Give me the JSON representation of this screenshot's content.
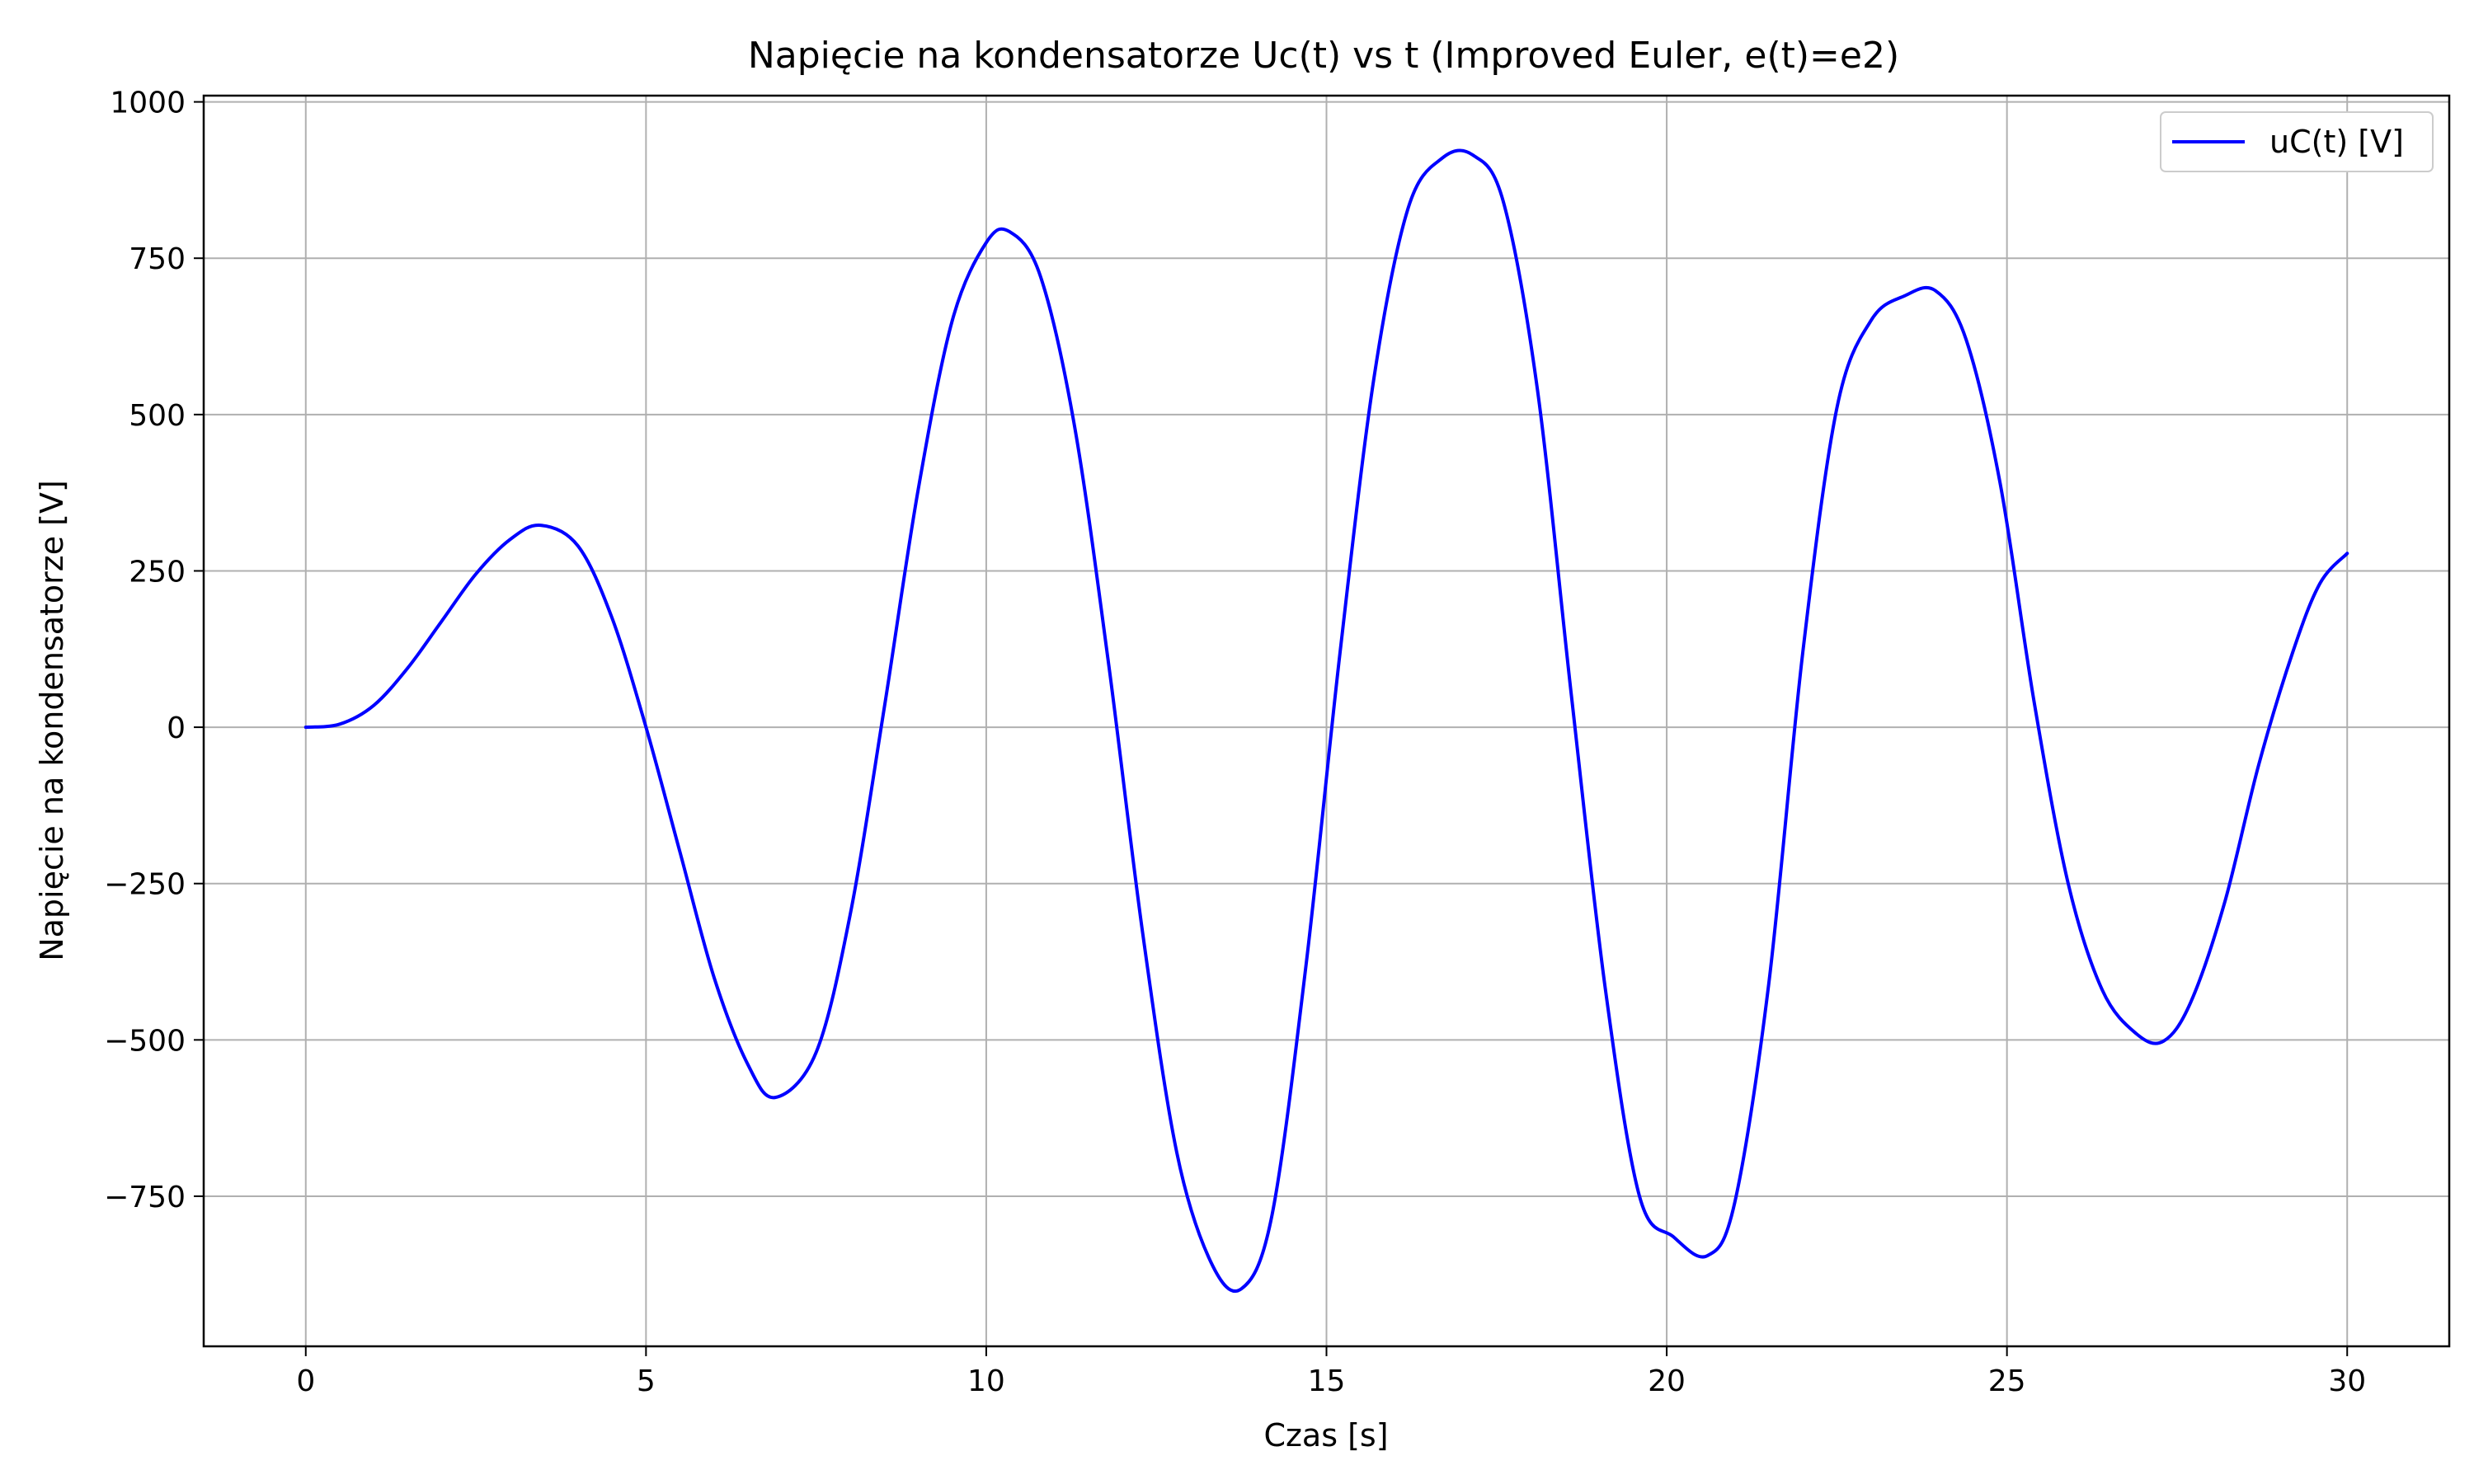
{
  "chart_data": {
    "type": "line",
    "title": "Napięcie na kondensatorze Uc(t) vs t (Improved Euler, e(t)=e2)",
    "xlabel": "Czas [s]",
    "ylabel": "Napięcie na kondensatorze [V]",
    "xlim": [
      -1.5,
      31.5
    ],
    "ylim": [
      -990,
      1010
    ],
    "xticks": [
      0,
      5,
      10,
      15,
      20,
      25,
      30
    ],
    "xtick_labels": [
      "0",
      "5",
      "10",
      "15",
      "20",
      "25",
      "30"
    ],
    "yticks": [
      -750,
      -500,
      -250,
      0,
      250,
      500,
      750,
      1000
    ],
    "ytick_labels": [
      "−750",
      "−500",
      "−250",
      "0",
      "250",
      "500",
      "750",
      "1000"
    ],
    "grid": true,
    "legend_position": "top-right",
    "series": [
      {
        "name": "uC(t) [V]",
        "color": "#0000ff",
        "points": [
          [
            0,
            0
          ],
          [
            0.5,
            5
          ],
          [
            1.0,
            35
          ],
          [
            1.5,
            95
          ],
          [
            2.0,
            170
          ],
          [
            2.5,
            245
          ],
          [
            3.0,
            300
          ],
          [
            3.45,
            323
          ],
          [
            4.0,
            290
          ],
          [
            4.5,
            175
          ],
          [
            5.0,
            0
          ],
          [
            5.5,
            -200
          ],
          [
            6.0,
            -400
          ],
          [
            6.5,
            -540
          ],
          [
            6.9,
            -592
          ],
          [
            7.5,
            -520
          ],
          [
            8.0,
            -300
          ],
          [
            8.5,
            30
          ],
          [
            9.0,
            380
          ],
          [
            9.5,
            650
          ],
          [
            10.0,
            775
          ],
          [
            10.35,
            792
          ],
          [
            10.8,
            720
          ],
          [
            11.3,
            480
          ],
          [
            11.8,
            100
          ],
          [
            12.3,
            -330
          ],
          [
            12.8,
            -680
          ],
          [
            13.3,
            -855
          ],
          [
            13.75,
            -898
          ],
          [
            14.2,
            -780
          ],
          [
            14.7,
            -380
          ],
          [
            15.2,
            120
          ],
          [
            15.7,
            560
          ],
          [
            16.2,
            830
          ],
          [
            16.7,
            910
          ],
          [
            17.15,
            915
          ],
          [
            17.6,
            840
          ],
          [
            18.1,
            540
          ],
          [
            18.6,
            50
          ],
          [
            19.1,
            -420
          ],
          [
            19.6,
            -750
          ],
          [
            20.1,
            -815
          ],
          [
            20.6,
            -845
          ],
          [
            21.0,
            -760
          ],
          [
            21.5,
            -410
          ],
          [
            22.0,
            120
          ],
          [
            22.5,
            510
          ],
          [
            23.0,
            650
          ],
          [
            23.5,
            690
          ],
          [
            23.95,
            698
          ],
          [
            24.4,
            620
          ],
          [
            24.9,
            390
          ],
          [
            25.4,
            40
          ],
          [
            25.9,
            -250
          ],
          [
            26.4,
            -420
          ],
          [
            26.9,
            -490
          ],
          [
            27.3,
            -502
          ],
          [
            27.7,
            -440
          ],
          [
            28.2,
            -280
          ],
          [
            28.7,
            -60
          ],
          [
            29.2,
            120
          ],
          [
            29.6,
            230
          ],
          [
            30.0,
            278
          ]
        ]
      }
    ]
  }
}
